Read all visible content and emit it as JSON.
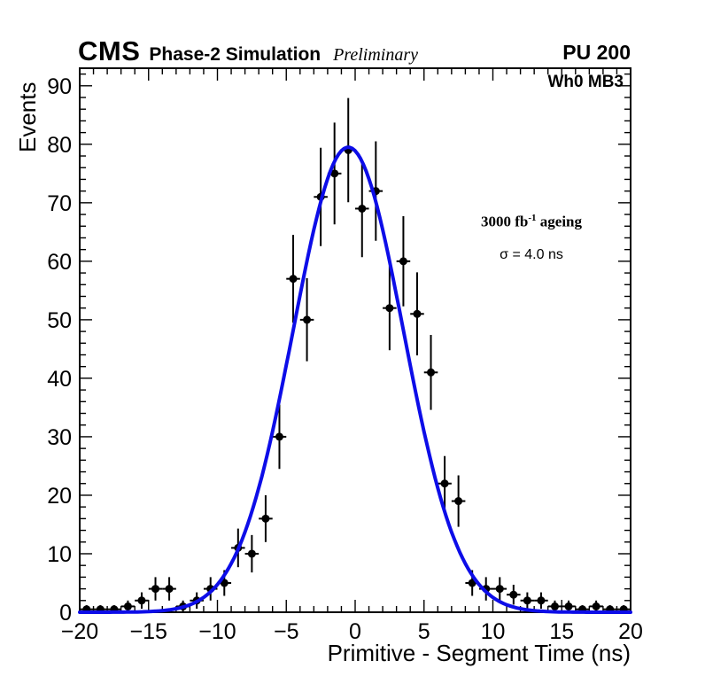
{
  "header": {
    "cms": "CMS",
    "subtitle": "Phase-2 Simulation",
    "preliminary": "Preliminary",
    "pu": "PU 200"
  },
  "plot": {
    "station": "Wh0 MB3",
    "lumi_prefix": "3000 fb",
    "lumi_sup": "-1",
    "lumi_suffix": " ageing",
    "sigma": "σ = 4.0 ns"
  },
  "axes": {
    "x_label": "Primitive - Segment Time (ns)",
    "y_label": "Events",
    "x_range": [
      -20,
      20
    ],
    "y_range": [
      0,
      93
    ],
    "x_major_ticks": [
      -20,
      -15,
      -10,
      -5,
      0,
      5,
      10,
      15,
      20
    ],
    "y_major_ticks": [
      0,
      10,
      20,
      30,
      40,
      50,
      60,
      70,
      80,
      90
    ]
  },
  "chart_data": {
    "type": "scatter",
    "title": "",
    "xlabel": "Primitive - Segment Time (ns)",
    "ylabel": "Events",
    "xlim": [
      -20,
      20
    ],
    "ylim": [
      0,
      93
    ],
    "grid": false,
    "legend": "none",
    "x_minor_step": 1,
    "y_minor_step": 2,
    "marker": {
      "shape": "circle",
      "color": "#000000",
      "radius": 4.5
    },
    "error_bars": {
      "x_half_width": 0.5,
      "color": "#000000",
      "line_width": 2
    },
    "points": [
      {
        "x": -19.5,
        "y": 0.5,
        "ey": 0.7
      },
      {
        "x": -18.5,
        "y": 0.5,
        "ey": 0.7
      },
      {
        "x": -17.5,
        "y": 0.5,
        "ey": 0.7
      },
      {
        "x": -16.5,
        "y": 1,
        "ey": 1.0
      },
      {
        "x": -15.5,
        "y": 2,
        "ey": 1.4
      },
      {
        "x": -14.5,
        "y": 4,
        "ey": 2.0
      },
      {
        "x": -13.5,
        "y": 4,
        "ey": 2.0
      },
      {
        "x": -12.5,
        "y": 1,
        "ey": 1.0
      },
      {
        "x": -11.5,
        "y": 2,
        "ey": 1.4
      },
      {
        "x": -10.5,
        "y": 4,
        "ey": 2.0
      },
      {
        "x": -9.5,
        "y": 5,
        "ey": 2.2
      },
      {
        "x": -8.5,
        "y": 11,
        "ey": 3.3
      },
      {
        "x": -7.5,
        "y": 10,
        "ey": 3.2
      },
      {
        "x": -6.5,
        "y": 16,
        "ey": 4.0
      },
      {
        "x": -5.5,
        "y": 30,
        "ey": 5.5
      },
      {
        "x": -4.5,
        "y": 57,
        "ey": 7.5
      },
      {
        "x": -3.5,
        "y": 50,
        "ey": 7.1
      },
      {
        "x": -2.5,
        "y": 71,
        "ey": 8.4
      },
      {
        "x": -1.5,
        "y": 75,
        "ey": 8.7
      },
      {
        "x": -0.5,
        "y": 79,
        "ey": 8.9
      },
      {
        "x": 0.5,
        "y": 69,
        "ey": 8.3
      },
      {
        "x": 1.5,
        "y": 72,
        "ey": 8.5
      },
      {
        "x": 2.5,
        "y": 52,
        "ey": 7.2
      },
      {
        "x": 3.5,
        "y": 60,
        "ey": 7.7
      },
      {
        "x": 4.5,
        "y": 51,
        "ey": 7.1
      },
      {
        "x": 5.5,
        "y": 41,
        "ey": 6.4
      },
      {
        "x": 6.5,
        "y": 22,
        "ey": 4.7
      },
      {
        "x": 7.5,
        "y": 19,
        "ey": 4.4
      },
      {
        "x": 8.5,
        "y": 5,
        "ey": 2.2
      },
      {
        "x": 9.5,
        "y": 4,
        "ey": 2.0
      },
      {
        "x": 10.5,
        "y": 4,
        "ey": 2.0
      },
      {
        "x": 11.5,
        "y": 3,
        "ey": 1.7
      },
      {
        "x": 12.5,
        "y": 2,
        "ey": 1.4
      },
      {
        "x": 13.5,
        "y": 2,
        "ey": 1.4
      },
      {
        "x": 14.5,
        "y": 1,
        "ey": 1.0
      },
      {
        "x": 15.5,
        "y": 1,
        "ey": 1.0
      },
      {
        "x": 16.5,
        "y": 0.5,
        "ey": 0.7
      },
      {
        "x": 17.5,
        "y": 1,
        "ey": 1.0
      },
      {
        "x": 18.5,
        "y": 0.5,
        "ey": 0.7
      },
      {
        "x": 19.5,
        "y": 0.5,
        "ey": 0.7
      }
    ],
    "fit_curve": {
      "shape": "gaussian",
      "amplitude": 79.5,
      "mean": -0.5,
      "sigma": 4.0,
      "color": "#0d0de8",
      "width": 4,
      "label": "σ = 4.0 ns"
    }
  }
}
